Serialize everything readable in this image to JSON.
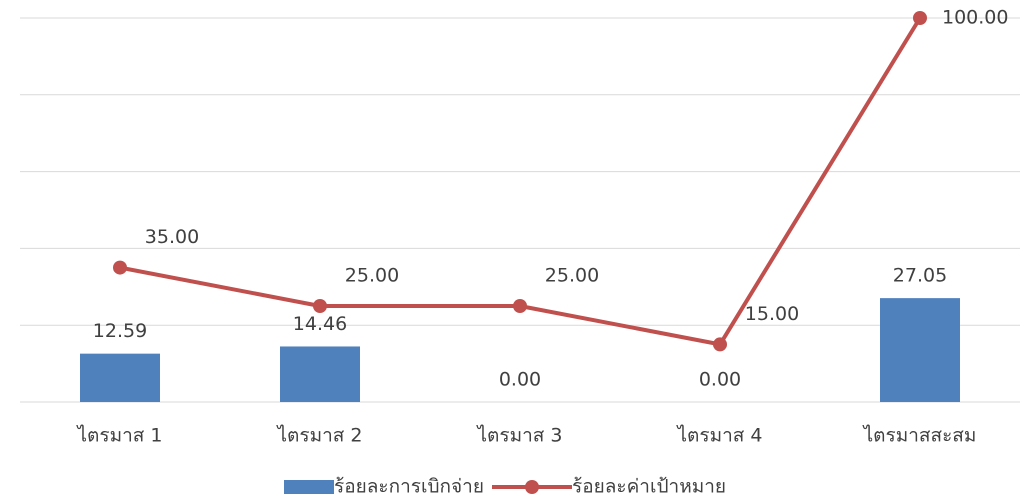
{
  "chart_data": {
    "type": "bar-line",
    "categories": [
      "ไตรมาส 1",
      "ไตรมาส 2",
      "ไตรมาส 3",
      "ไตรมาส 4",
      "ไตรมาสสะสม"
    ],
    "series": [
      {
        "name": "ร้อยละการเบิกจ่าย",
        "type": "bar",
        "color": "#4f81bd",
        "values": [
          12.59,
          14.46,
          0,
          0,
          27.05
        ],
        "value_labels": [
          "12.59",
          "14.46",
          "0.00",
          "0.00",
          "27.05"
        ]
      },
      {
        "name": "ร้อยละค่าเป้าหมาย",
        "type": "line",
        "color": "#c0504d",
        "values": [
          35,
          25,
          25,
          15,
          100
        ],
        "value_labels": [
          "35.00",
          "25.00",
          "25.00",
          "15.00",
          "100.00"
        ]
      }
    ],
    "ylim": [
      0,
      100
    ],
    "yticks": [
      0,
      20,
      40,
      60,
      80,
      100
    ],
    "grid": true,
    "legend": "bottom"
  }
}
